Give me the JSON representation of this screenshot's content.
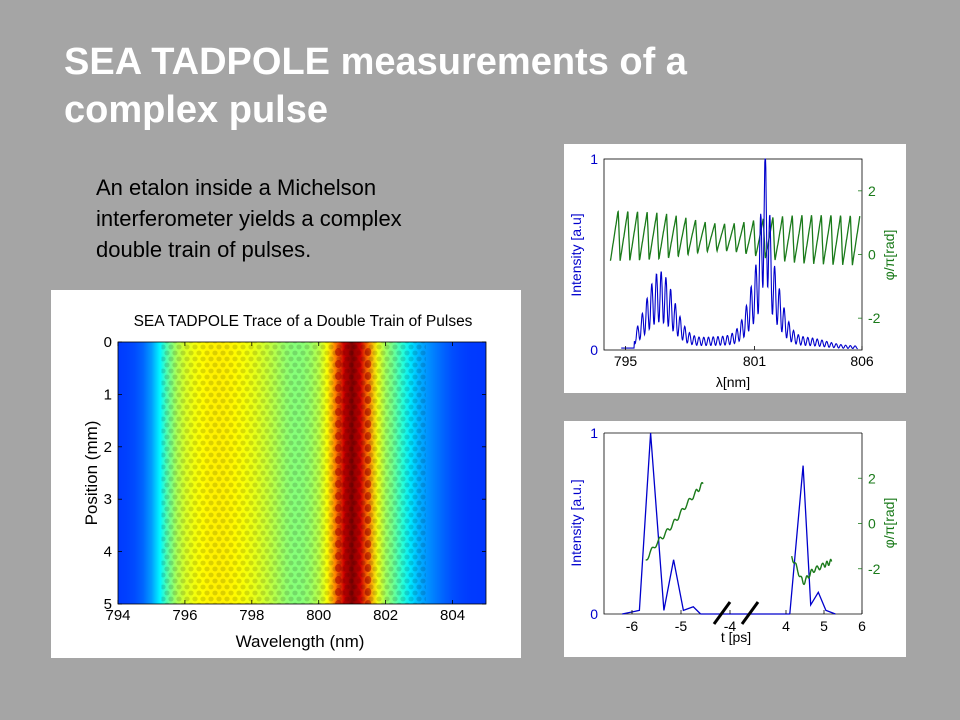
{
  "slide": {
    "title_lines": [
      "SEA TADPOLE measurements of a",
      "complex pulse"
    ],
    "body_lines": [
      "An etalon inside a Michelson",
      "interferometer yields a complex",
      "double train of pulses."
    ]
  },
  "colors": {
    "background": "#a5a5a5",
    "title": "#ffffff",
    "intensity": "#0000cc",
    "phase": "#1a7a1a"
  },
  "chart_data": [
    {
      "id": "trace",
      "type": "heatmap",
      "title": "SEA TADPOLE Trace of a Double Train of Pulses",
      "xlabel": "Wavelength (nm)",
      "ylabel": "Position (mm)",
      "xlim": [
        794,
        805
      ],
      "ylim": [
        0,
        5
      ],
      "y_inverted": true,
      "xticks": [
        "794",
        "796",
        "798",
        "800",
        "802",
        "804"
      ],
      "yticks": [
        "0",
        "1",
        "2",
        "3",
        "4",
        "5"
      ],
      "colormap": "jet",
      "features": [
        {
          "wavelength_nm": 801.0,
          "relative_intensity": 1.0,
          "fringe_period_mm": 0.25
        },
        {
          "wavelength_nm": 797.0,
          "relative_intensity": 0.6,
          "fringe_period_mm": 0.25
        }
      ]
    },
    {
      "id": "spectrum",
      "type": "line",
      "xlabel": "λ[nm]",
      "ylabel": "Intensity [a.u]",
      "y2label": "φ/π[rad]",
      "xlim": [
        794,
        806
      ],
      "ylim": [
        0,
        1
      ],
      "y2lim": [
        -3,
        3
      ],
      "xticks": [
        "795",
        "801",
        "806"
      ],
      "yticks": [
        "0",
        "1"
      ],
      "y2ticks": [
        "2",
        "0",
        "-2"
      ],
      "series": [
        {
          "axis": "left",
          "peaks": [
            {
              "x": 796.6,
              "y": 0.38
            },
            {
              "x": 801.5,
              "y": 1.0
            }
          ],
          "floor": 0.02
        },
        {
          "axis": "right",
          "mean": 0.6,
          "amplitude": 1.0,
          "period_nm": 0.45
        }
      ]
    },
    {
      "id": "temporal",
      "type": "line",
      "xlabel": "t [ps]",
      "ylabel": "Intensity [a.u.]",
      "y2label": "φ/π[rad]",
      "ylim": [
        0,
        1
      ],
      "y2lim": [
        -4,
        4
      ],
      "xticks": [
        "-6",
        "-5",
        "-4",
        "4",
        "5",
        "6"
      ],
      "yticks": [
        "0",
        "1"
      ],
      "y2ticks": [
        "2",
        "0",
        "-2"
      ],
      "broken_axis": {
        "left_range": [
          -6,
          -3.5
        ],
        "right_range": [
          3.5,
          6
        ]
      },
      "series": [
        {
          "axis": "left",
          "points": [
            [
              -6.2,
              0
            ],
            [
              -5.85,
              0.02
            ],
            [
              -5.62,
              1.0
            ],
            [
              -5.35,
              0.02
            ],
            [
              -5.15,
              0.3
            ],
            [
              -4.95,
              0.02
            ],
            [
              -4.75,
              0.04
            ],
            [
              -4.6,
              0
            ],
            [
              4.1,
              0
            ],
            [
              4.45,
              0.82
            ],
            [
              4.65,
              0.05
            ],
            [
              4.85,
              0.12
            ],
            [
              5.05,
              0.02
            ],
            [
              5.3,
              0
            ]
          ]
        },
        {
          "axis": "left",
          "points": [
            [
              -5.72,
              0.3
            ],
            [
              -5.5,
              0.39
            ],
            [
              -5.3,
              0.45
            ],
            [
              -5.1,
              0.52
            ],
            [
              -4.9,
              0.6
            ],
            [
              -4.7,
              0.67
            ],
            [
              -4.55,
              0.72
            ]
          ]
        },
        {
          "axis": "left",
          "points": [
            [
              4.15,
              0.32
            ],
            [
              4.45,
              0.17
            ],
            [
              4.7,
              0.24
            ],
            [
              5.0,
              0.27
            ],
            [
              5.2,
              0.29
            ]
          ]
        }
      ]
    }
  ]
}
